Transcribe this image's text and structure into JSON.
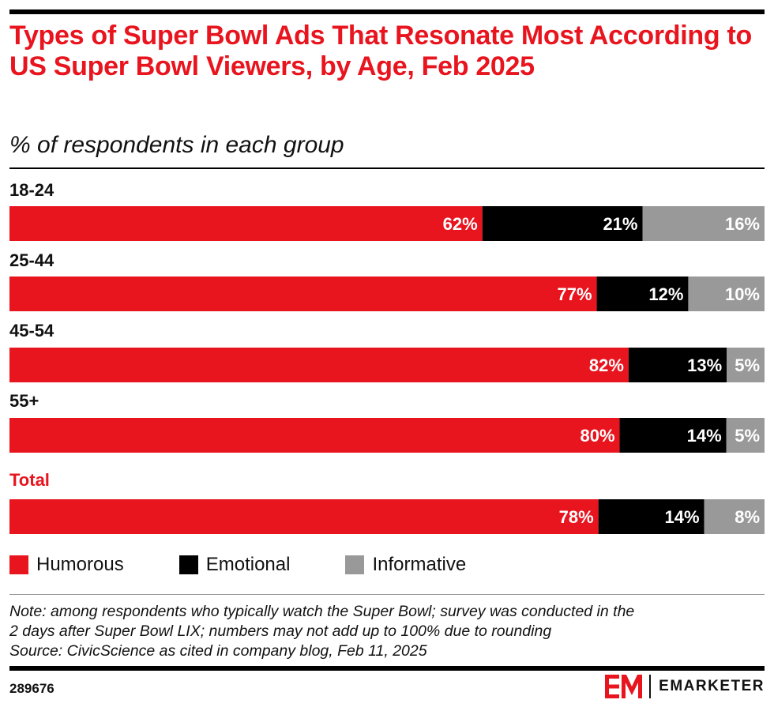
{
  "header": {
    "title": "Types of Super Bowl Ads That Resonate Most According to US Super Bowl Viewers, by Age, Feb 2025",
    "subtitle": "% of respondents in each group"
  },
  "chart_data": {
    "type": "bar",
    "orientation": "horizontal",
    "stacked": true,
    "categories": [
      "18-24",
      "25-44",
      "45-54",
      "55+",
      "Total"
    ],
    "series": [
      {
        "name": "Humorous",
        "color": "#e8141e",
        "values": [
          62,
          77,
          82,
          80,
          78
        ],
        "labels": [
          "62%",
          "77%",
          "82%",
          "80%",
          "78%"
        ]
      },
      {
        "name": "Emotional",
        "color": "#000000",
        "values": [
          21,
          12,
          13,
          14,
          14
        ],
        "labels": [
          "21%",
          "12%",
          "13%",
          "14%",
          "14%"
        ]
      },
      {
        "name": "Informative",
        "color": "#999999",
        "values": [
          16,
          10,
          5,
          5,
          8
        ],
        "labels": [
          "16%",
          "10%",
          "5%",
          "5%",
          "8%"
        ]
      }
    ],
    "highlight_category": "Total",
    "highlight_color": "#e8141e",
    "legend_position": "bottom"
  },
  "legend": [
    {
      "label": "Humorous",
      "color": "#e8141e"
    },
    {
      "label": "Emotional",
      "color": "#000000"
    },
    {
      "label": "Informative",
      "color": "#999999"
    }
  ],
  "footer": {
    "note_line1": "Note: among respondents who typically watch the Super Bowl; survey was conducted in the",
    "note_line2": "2 days after Super Bowl LIX; numbers may not add up to 100% due to rounding",
    "source": "Source: CivicScience as cited in company blog, Feb 11, 2025",
    "chart_id": "289676",
    "brand": "EMARKETER",
    "brand_color": "#e8141e"
  }
}
